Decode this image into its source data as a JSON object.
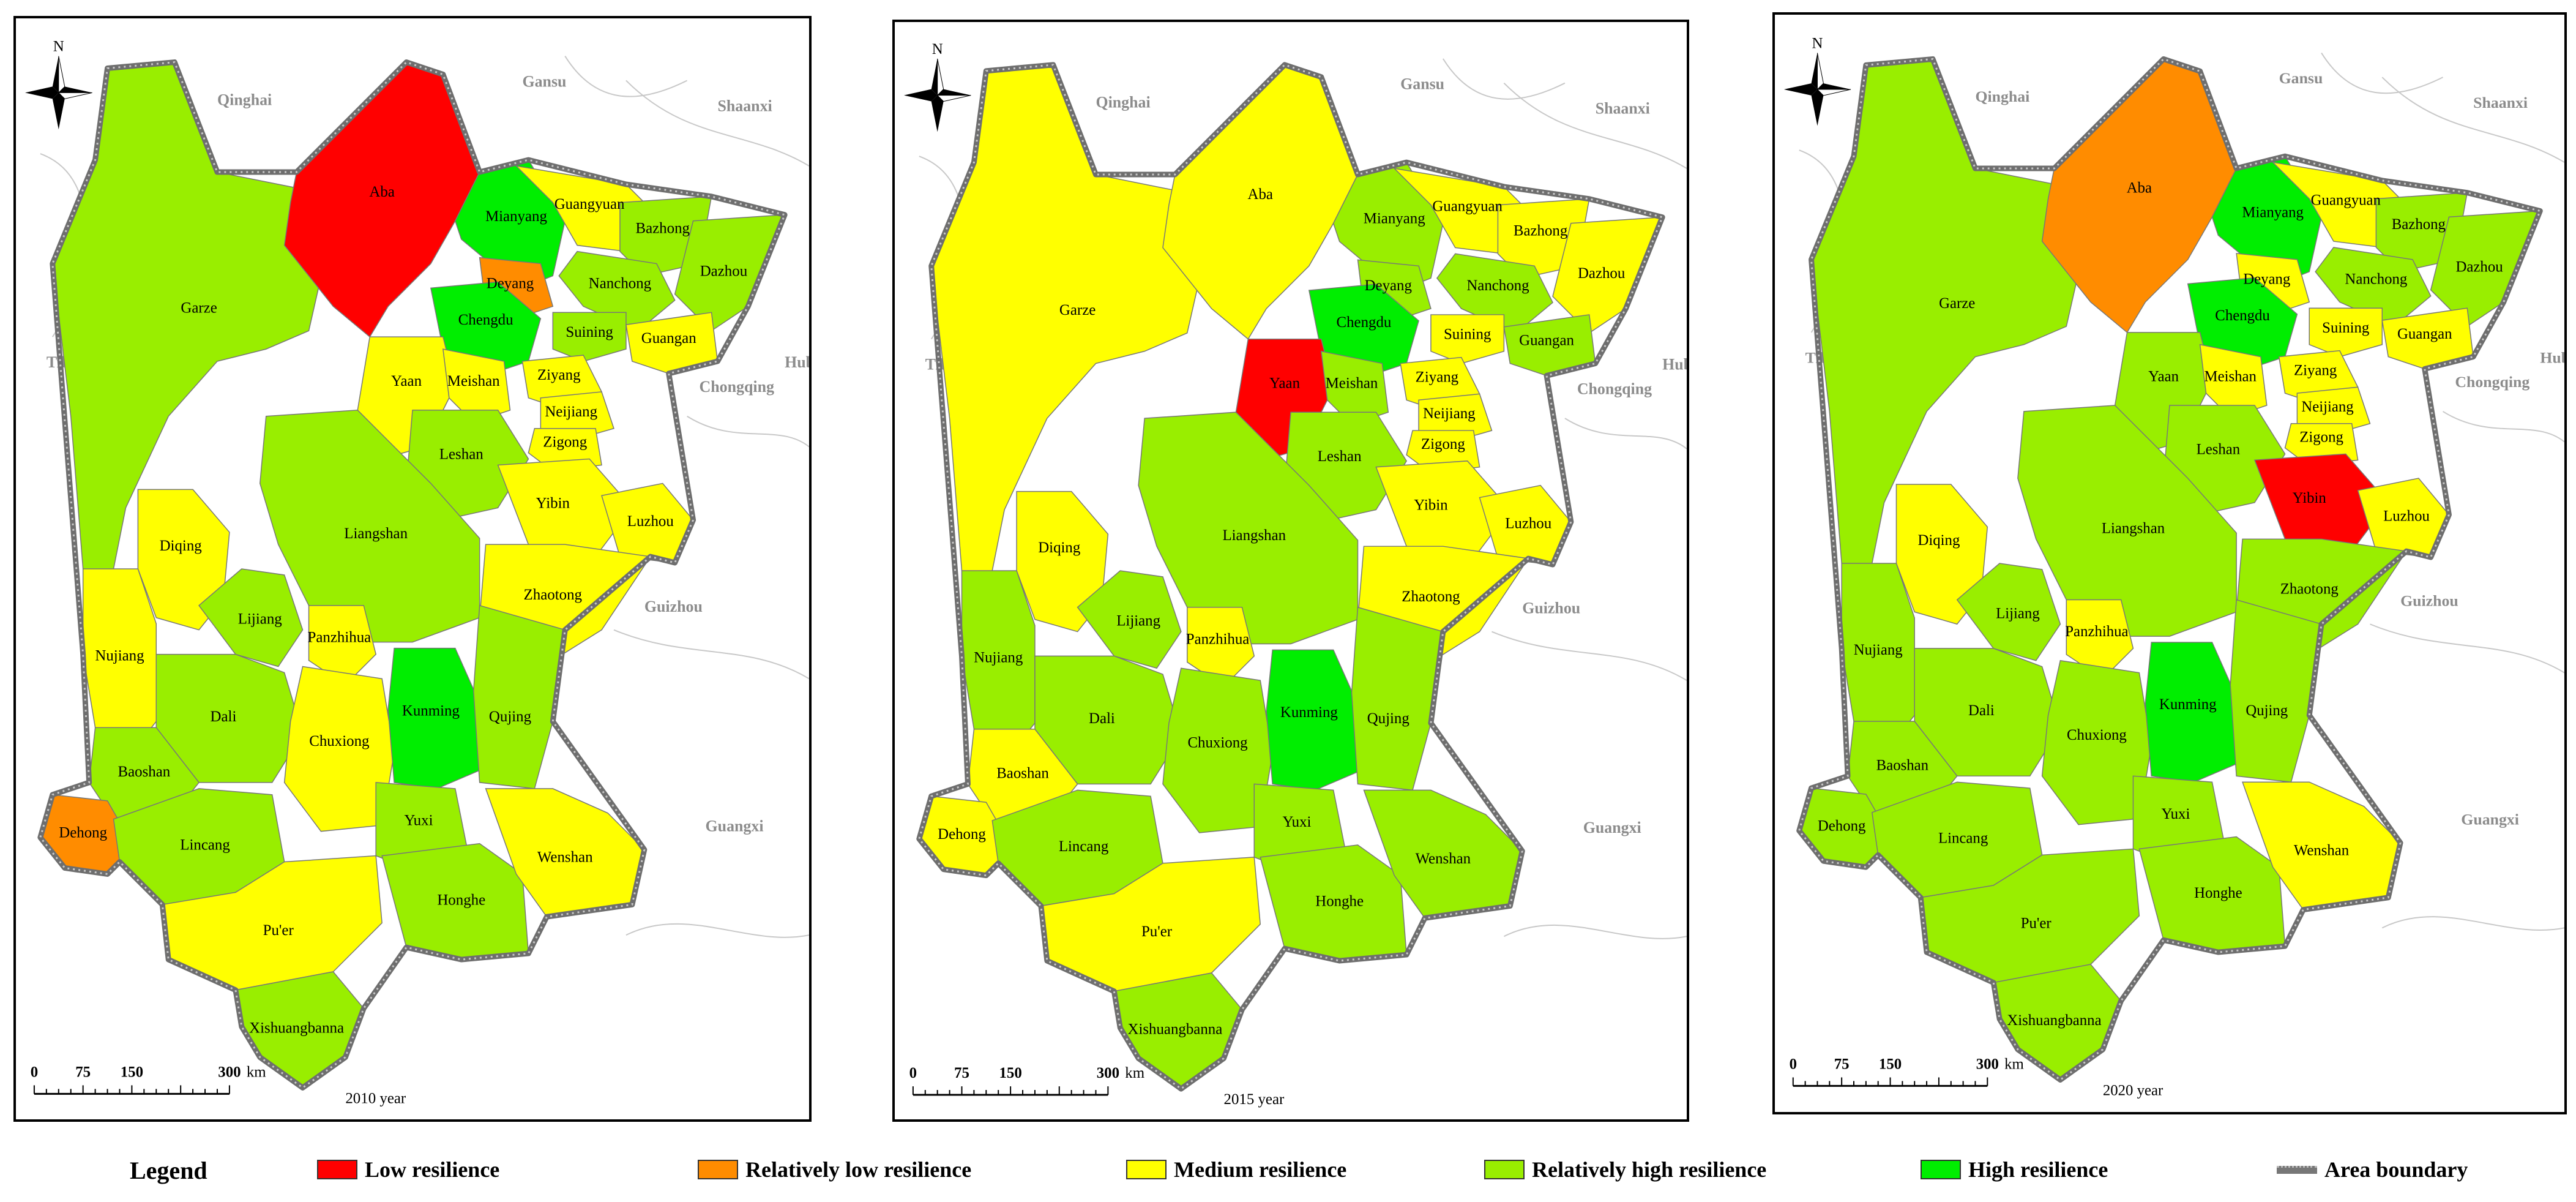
{
  "panels": [
    {
      "year_label": "2010 year",
      "regions": {
        "Aba": "low",
        "Deyang": "rel_low",
        "Dehong": "rel_low",
        "Mianyang": "high",
        "Chengdu": "high",
        "Kunming": "high",
        "Guangyuan": "medium",
        "Bazhong": "rel_high",
        "Nanchong": "rel_high",
        "Dazhou": "rel_high",
        "Suining": "rel_high",
        "Guangan": "medium",
        "Garze": "rel_high",
        "Yaan": "medium",
        "Meishan": "medium",
        "Ziyang": "medium",
        "Neijiang": "medium",
        "Zigong": "medium",
        "Leshan": "rel_high",
        "Yibin": "medium",
        "Luzhou": "medium",
        "Liangshan": "rel_high",
        "Zhaotong": "medium",
        "Diqing": "medium",
        "Nujiang": "medium",
        "Lijiang": "rel_high",
        "Panzhihua": "medium",
        "Dali": "rel_high",
        "Chuxiong": "medium",
        "Qujing": "rel_high",
        "Baoshan": "rel_high",
        "Lincang": "rel_high",
        "Yuxi": "rel_high",
        "Pu'er": "medium",
        "Honghe": "rel_high",
        "Wenshan": "medium",
        "Xishuangbanna": "rel_high"
      }
    },
    {
      "year_label": "2015 year",
      "regions": {
        "Aba": "medium",
        "Garze": "medium",
        "Yaan": "low",
        "Chengdu": "high",
        "Kunming": "high",
        "Deyang": "rel_high",
        "Mianyang": "rel_high",
        "Guangyuan": "medium",
        "Bazhong": "medium",
        "Nanchong": "rel_high",
        "Dazhou": "medium",
        "Suining": "medium",
        "Guangan": "rel_high",
        "Meishan": "rel_high",
        "Ziyang": "medium",
        "Neijiang": "medium",
        "Zigong": "medium",
        "Leshan": "rel_high",
        "Yibin": "medium",
        "Luzhou": "medium",
        "Liangshan": "rel_high",
        "Zhaotong": "medium",
        "Diqing": "medium",
        "Nujiang": "rel_high",
        "Lijiang": "rel_high",
        "Panzhihua": "medium",
        "Dali": "rel_high",
        "Chuxiong": "rel_high",
        "Qujing": "rel_high",
        "Baoshan": "medium",
        "Dehong": "medium",
        "Lincang": "rel_high",
        "Yuxi": "rel_high",
        "Pu'er": "medium",
        "Honghe": "rel_high",
        "Wenshan": "rel_high",
        "Xishuangbanna": "rel_high"
      }
    },
    {
      "year_label": "2020 year",
      "regions": {
        "Aba": "rel_low",
        "Yibin": "low",
        "Mianyang": "high",
        "Chengdu": "high",
        "Kunming": "high",
        "Garze": "rel_high",
        "Guangyuan": "medium",
        "Bazhong": "rel_high",
        "Nanchong": "rel_high",
        "Dazhou": "rel_high",
        "Deyang": "medium",
        "Suining": "medium",
        "Guangan": "medium",
        "Yaan": "rel_high",
        "Meishan": "medium",
        "Ziyang": "medium",
        "Neijiang": "medium",
        "Zigong": "medium",
        "Leshan": "rel_high",
        "Luzhou": "medium",
        "Liangshan": "rel_high",
        "Zhaotong": "rel_high",
        "Diqing": "medium",
        "Nujiang": "rel_high",
        "Lijiang": "rel_high",
        "Panzhihua": "medium",
        "Dali": "rel_high",
        "Chuxiong": "rel_high",
        "Qujing": "rel_high",
        "Baoshan": "rel_high",
        "Dehong": "rel_high",
        "Lincang": "rel_high",
        "Yuxi": "rel_high",
        "Pu'er": "rel_high",
        "Honghe": "rel_high",
        "Wenshan": "medium",
        "Xishuangbanna": "rel_high"
      }
    }
  ],
  "context_labels": [
    "Qinghai",
    "Gansu",
    "Shaanxi",
    "Tibet",
    "Chongqing",
    "Hubei",
    "Guizhou",
    "Guangxi"
  ],
  "north_label": "N",
  "scale": {
    "ticks": [
      "0",
      "75",
      "150",
      "300"
    ],
    "unit": "km"
  },
  "legend": {
    "title": "Legend",
    "items": [
      {
        "key": "low",
        "label": "Low resilience",
        "color": "#ff0000"
      },
      {
        "key": "rel_low",
        "label": "Relatively low resilience",
        "color": "#ff8c00"
      },
      {
        "key": "medium",
        "label": "Medium resilience",
        "color": "#ffff00"
      },
      {
        "key": "rel_high",
        "label": "Relatively high resilience",
        "color": "#99ee00"
      },
      {
        "key": "high",
        "label": "High resilience",
        "color": "#00ee00"
      }
    ],
    "boundary_label": "Area boundary"
  }
}
